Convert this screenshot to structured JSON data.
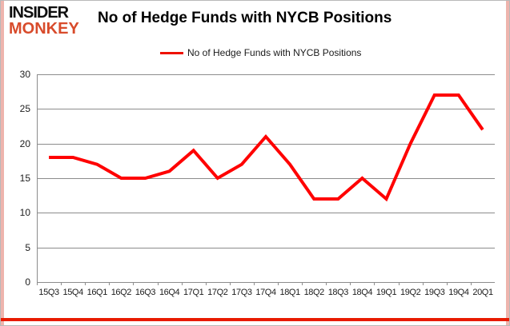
{
  "branding": {
    "line1": "INSIDER",
    "line2": "MONKEY",
    "monkey_color": "#d84b2b"
  },
  "header": {
    "title": "No of Hedge Funds with NYCB Positions"
  },
  "legend": {
    "label": "No of Hedge Funds with NYCB Positions",
    "swatch_color": "#ee1100"
  },
  "frame": {
    "bottom_bar_color": "#e81a00",
    "side_border_color": "#eeb4ad"
  },
  "chart_data": {
    "type": "line",
    "title": "No of Hedge Funds with NYCB Positions",
    "categories": [
      "15Q3",
      "15Q4",
      "16Q1",
      "16Q2",
      "16Q3",
      "16Q4",
      "17Q1",
      "17Q2",
      "17Q3",
      "17Q4",
      "18Q1",
      "18Q2",
      "18Q3",
      "18Q4",
      "19Q1",
      "19Q2",
      "19Q3",
      "19Q4",
      "20Q1"
    ],
    "values": [
      18,
      18,
      17,
      15,
      15,
      16,
      19,
      15,
      17,
      21,
      17,
      12,
      12,
      15,
      12,
      20,
      27,
      27,
      22
    ],
    "xlabel": "",
    "ylabel": "",
    "ylim": [
      0,
      30
    ],
    "yticks": [
      0,
      5,
      10,
      15,
      20,
      25,
      30
    ],
    "grid": true,
    "legend_position": "top",
    "line_color": "#ff0000",
    "gridline_color": "#8c8c8c",
    "axis_color": "#8c8c8c"
  }
}
